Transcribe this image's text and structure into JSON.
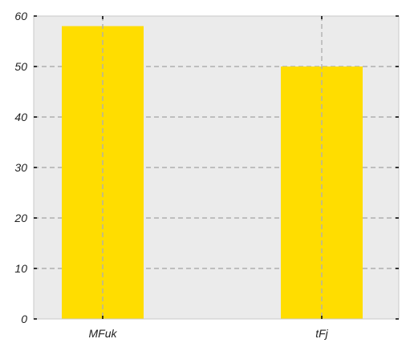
{
  "chart_data": {
    "type": "bar",
    "categories": [
      "MFuk",
      "tFj"
    ],
    "values": [
      58,
      50
    ],
    "title": "",
    "xlabel": "",
    "ylabel": "",
    "ylim": [
      0,
      60
    ],
    "yticks": [
      0,
      10,
      20,
      30,
      40,
      50,
      60
    ],
    "grid": true,
    "legend": "none",
    "colors": {
      "bar": "#FFDD00",
      "plot_background": "#EBEBEB",
      "grid": "#B0B0B0",
      "axis": "#000000"
    }
  }
}
